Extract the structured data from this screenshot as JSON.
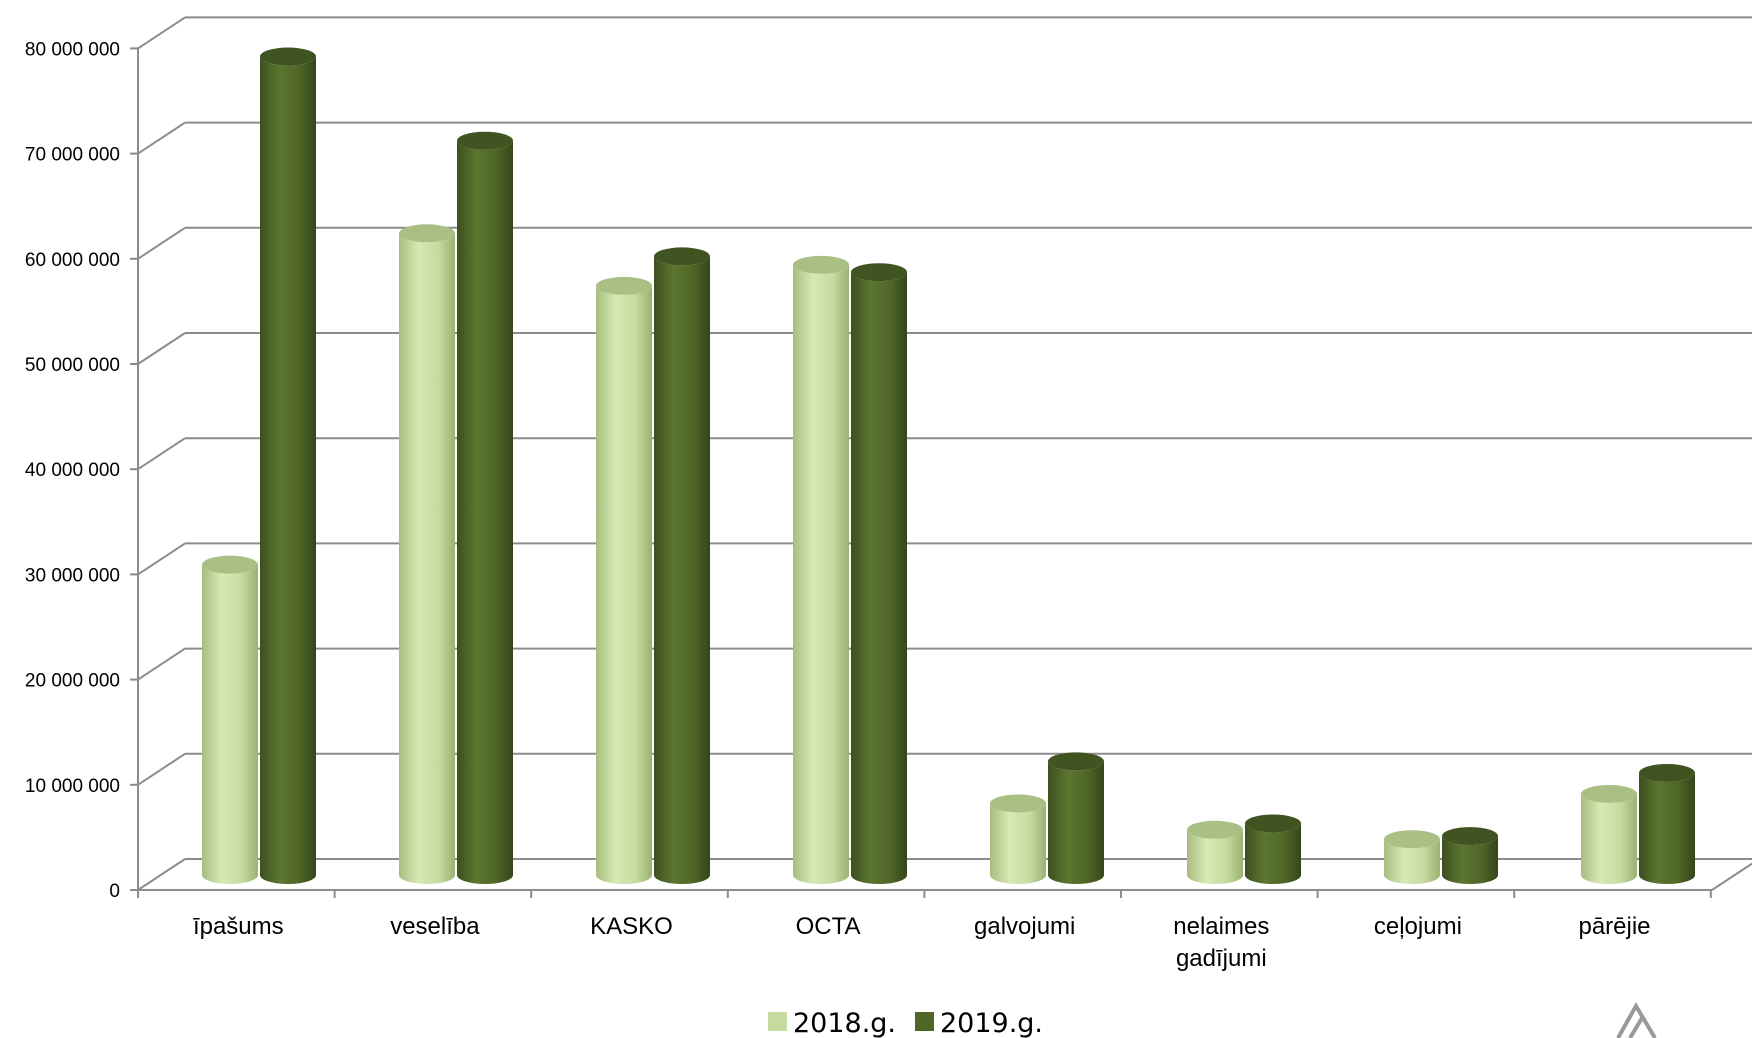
{
  "chart_data": {
    "type": "bar",
    "categories": [
      [
        "īpašums"
      ],
      [
        "veselība"
      ],
      [
        "KASKO"
      ],
      [
        "OCTA"
      ],
      [
        "galvojumi"
      ],
      [
        "nelaimes",
        "gadījumi"
      ],
      [
        "ceļojumi"
      ],
      [
        "pārējie"
      ]
    ],
    "series": [
      {
        "name": "2018.g.",
        "color": "#c5dba0",
        "values": [
          29500000,
          61000000,
          56000000,
          58000000,
          6800000,
          4300000,
          3400000,
          7700000
        ]
      },
      {
        "name": "2019.g.",
        "color": "#4f6627",
        "values": [
          77800000,
          69800000,
          58800000,
          57300000,
          10800000,
          4900000,
          3700000,
          9700000
        ]
      }
    ],
    "y_ticks": [
      "0",
      "10 000 000",
      "20 000 000",
      "30 000 000",
      "40 000 000",
      "50 000 000",
      "60 000 000",
      "70 000 000",
      "80 000 000"
    ],
    "ylim": [
      0,
      80000000
    ],
    "grid": true,
    "legend_position": "bottom-center",
    "title": "",
    "xlabel": "",
    "ylabel": ""
  }
}
